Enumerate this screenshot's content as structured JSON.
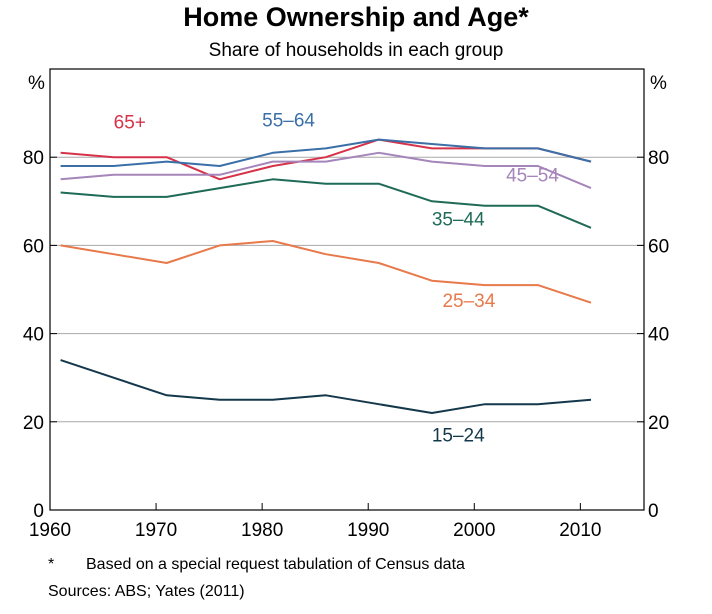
{
  "chart_data": {
    "type": "line",
    "title": "Home Ownership and Age*",
    "subtitle": "Share of households in each group",
    "yunit_left": "%",
    "yunit_right": "%",
    "xlim": [
      1960,
      2016
    ],
    "ylim": [
      0,
      100
    ],
    "xticks": [
      1960,
      1970,
      1980,
      1990,
      2000,
      2010
    ],
    "yticks": [
      0,
      20,
      40,
      60,
      80
    ],
    "gridlines": [
      20,
      40,
      60,
      80
    ],
    "x": [
      1961,
      1966,
      1971,
      1976,
      1981,
      1986,
      1991,
      1996,
      2001,
      2006,
      2011
    ],
    "series": [
      {
        "name": "65+",
        "color": "#d6334a",
        "values": [
          81,
          80,
          80,
          75,
          78,
          80,
          84,
          82,
          82,
          82,
          79
        ],
        "label_x": 1966,
        "label_y": 86.5
      },
      {
        "name": "55–64",
        "color": "#3a6fa8",
        "values": [
          78,
          78,
          79,
          78,
          81,
          82,
          84,
          83,
          82,
          82,
          79
        ],
        "label_x": 1980,
        "label_y": 87
      },
      {
        "name": "45–54",
        "color": "#a585ba",
        "values": [
          75,
          76,
          76,
          76,
          79,
          79,
          81,
          79,
          78,
          78,
          73
        ],
        "label_x": 2003,
        "label_y": 74.5
      },
      {
        "name": "35–44",
        "color": "#1f6b58",
        "values": [
          72,
          71,
          71,
          73,
          75,
          74,
          74,
          70,
          69,
          69,
          64
        ],
        "label_x": 1996,
        "label_y": 64.5
      },
      {
        "name": "25–34",
        "color": "#e8794a",
        "values": [
          60,
          58,
          56,
          60,
          61,
          58,
          56,
          52,
          51,
          51,
          47
        ],
        "label_x": 1997,
        "label_y": 46
      },
      {
        "name": "15–24",
        "color": "#14384b",
        "values": [
          34,
          30,
          26,
          25,
          25,
          26,
          24,
          22,
          24,
          24,
          25
        ],
        "label_x": 1996,
        "label_y": 15.5
      }
    ]
  },
  "footnotes": {
    "mark": "*",
    "note": "Based on a special request tabulation of Census data",
    "sources": "Sources:  ABS; Yates (2011)"
  }
}
